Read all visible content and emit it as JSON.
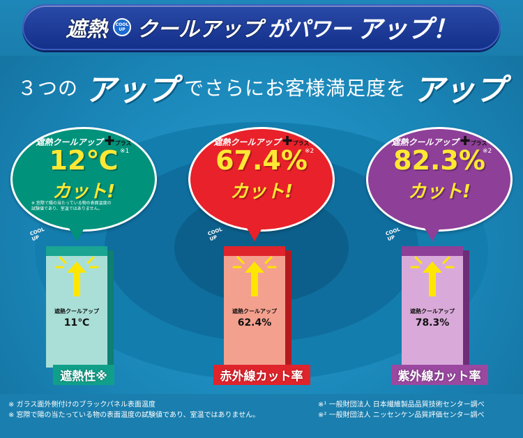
{
  "banner": {
    "brand": "遮熱",
    "cool_badge_top": "COOL",
    "cool_badge_bottom": "UP",
    "product": "クールアップ",
    "tail_prefix": "がパワー",
    "tail_big": "アップ！"
  },
  "headline": {
    "part1": "３つの",
    "up1": "アップ",
    "part2": "でさらにお客様満足度を",
    "up2": "アップ"
  },
  "plus_label": "遮熱クールアップ",
  "plus_mark": "✚",
  "plus_text": "プラス",
  "cool_tag_top": "COOL",
  "cool_tag_bottom": "UP",
  "panels": [
    {
      "value": "12℃",
      "sup": "※1",
      "cut": "カット!",
      "note_lines": [
        "※ 窓際で陽の当たっている物の表面温度の",
        "試験値であり、室温ではありません。"
      ],
      "box_brand": "遮熱クールアップ",
      "box_value": "11℃",
      "caption": "遮熱性※",
      "colors": {
        "bubble": "#00927a",
        "box_front": "#a9dfd7",
        "box_top": "#19a592",
        "box_side": "#0e7f70",
        "caption_bg": "#10a08a"
      }
    },
    {
      "value": "67.4%",
      "sup": "※2",
      "cut": "カット!",
      "box_brand": "遮熱クールアップ",
      "box_value": "62.4%",
      "caption": "赤外線カット率",
      "colors": {
        "bubble": "#e8212a",
        "box_front": "#f4a08e",
        "box_top": "#e0242c",
        "box_side": "#b51920",
        "caption_bg": "#e0242c"
      }
    },
    {
      "value": "82.3%",
      "sup": "※2",
      "cut": "カット!",
      "box_brand": "遮熱クールアップ",
      "box_value": "78.3%",
      "caption": "紫外線カット率",
      "colors": {
        "bubble": "#8e3f97",
        "box_front": "#d9aad9",
        "box_top": "#8e3f97",
        "box_side": "#6e2d77",
        "caption_bg": "#9a48a0"
      }
    }
  ],
  "footnotes": {
    "left": [
      "※ ガラス面外側付けのブラックパネル表面温度",
      "※ 窓際で陽の当たっている物の表面温度の試験値であり、室温ではありません。"
    ],
    "right": [
      "※¹ 一般財団法人 日本繊維製品品質技術センター調べ",
      "※² 一般財団法人 ニッセンケン品質評価センター調べ"
    ]
  }
}
